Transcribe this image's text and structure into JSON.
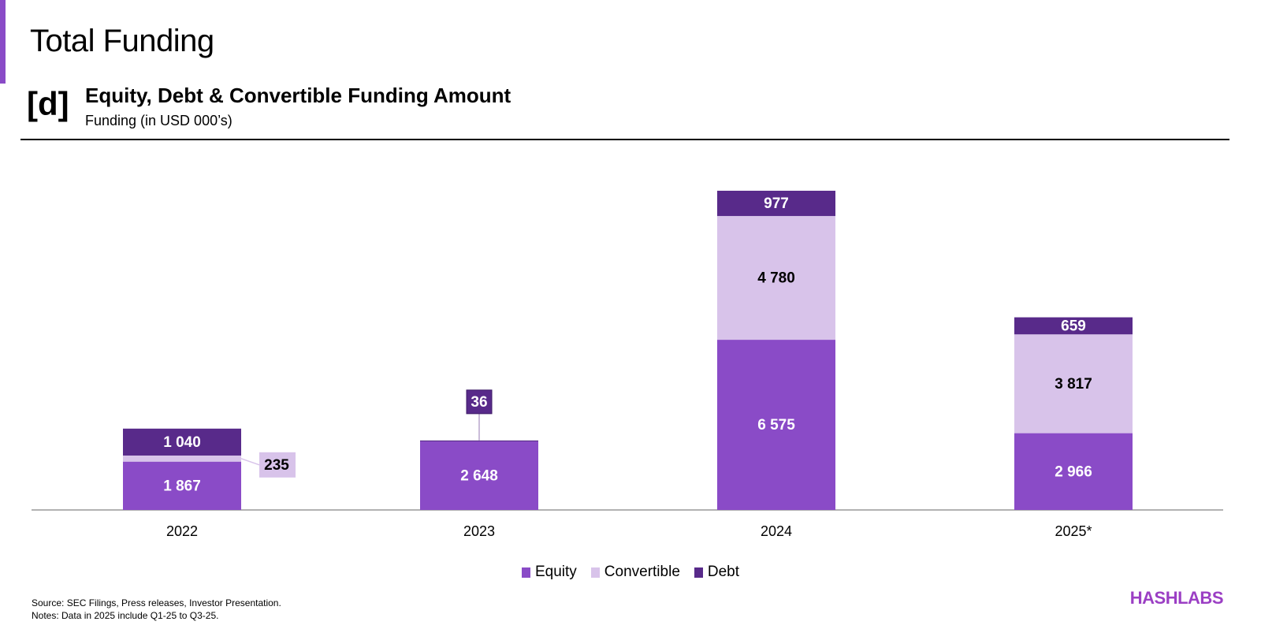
{
  "header": {
    "title": "Total Funding",
    "tag": "[d]",
    "subtitle": "Equity, Debt & Convertible Funding Amount",
    "unit": "Funding (in USD 000’s)"
  },
  "chart_data": {
    "type": "bar",
    "stacked": true,
    "categories": [
      "2022",
      "2023",
      "2024",
      "2025*"
    ],
    "series": [
      {
        "name": "Equity",
        "color": "#8a4bc7",
        "values": [
          1867,
          2648,
          6575,
          2966
        ],
        "labels": [
          "1 867",
          "2 648",
          "6 575",
          "2 966"
        ]
      },
      {
        "name": "Convertible",
        "color": "#d8c3ea",
        "values": [
          235,
          0,
          4780,
          3817
        ],
        "labels": [
          "235",
          "",
          "4 780",
          "3 817"
        ]
      },
      {
        "name": "Debt",
        "color": "#582a8a",
        "values": [
          1040,
          36,
          977,
          659
        ],
        "labels": [
          "1 040",
          "36",
          "977",
          "659"
        ]
      }
    ],
    "ylim": [
      0,
      12500
    ],
    "grid": false,
    "legend": "bottom"
  },
  "footer": {
    "source": "Source: SEC Filings, Press releases, Investor Presentation.",
    "notes": "Notes: Data in 2025 include Q1-25 to Q3-25.",
    "logo": "HASHLABS"
  }
}
